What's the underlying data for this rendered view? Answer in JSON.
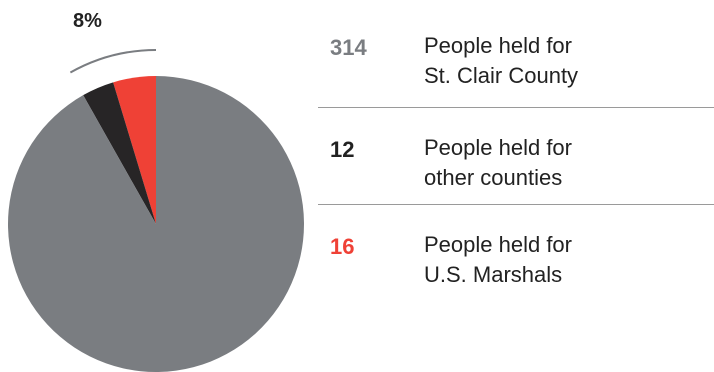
{
  "chart_data": {
    "type": "pie",
    "title": "",
    "slices": [
      {
        "value": 314,
        "label": "People held for St. Clair County",
        "color": "#7a7d81"
      },
      {
        "value": 12,
        "label": "People held for other counties",
        "color": "#272526"
      },
      {
        "value": 16,
        "label": "People held for U.S. Marshals",
        "color": "#ef4136"
      }
    ],
    "annotation": "8%"
  },
  "legend": [
    {
      "value": "314",
      "line1": "People held for",
      "line2": "St. Clair County",
      "color": "#7a7d81"
    },
    {
      "value": "12",
      "line1": "People held for",
      "line2": "other counties",
      "color": "#222222"
    },
    {
      "value": "16",
      "line1": "People held for",
      "line2": "U.S. Marshals",
      "color": "#ef4136"
    }
  ]
}
